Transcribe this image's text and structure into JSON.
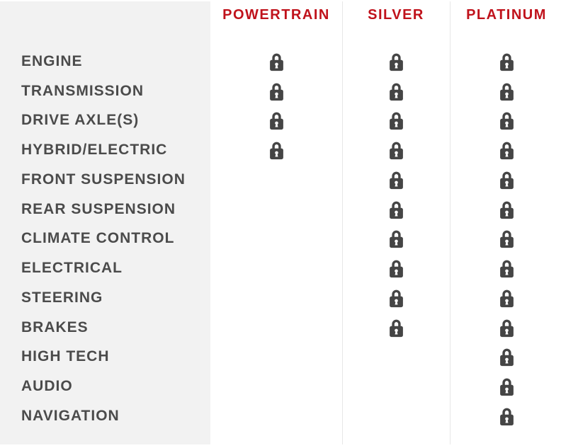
{
  "colors": {
    "header_red": "#c0121b",
    "label_gray": "#4b4b4b",
    "lock_gray": "#454545",
    "panel_bg": "#f2f2f2",
    "divider": "#e7e7e7",
    "page_bg": "#ffffff"
  },
  "table": {
    "columns": [
      {
        "id": "powertrain",
        "label": "POWERTRAIN"
      },
      {
        "id": "silver",
        "label": "SILVER"
      },
      {
        "id": "platinum",
        "label": "PLATINUM"
      }
    ],
    "covered_icon": "lock-icon",
    "rows": [
      {
        "label": "ENGINE",
        "powertrain": true,
        "silver": true,
        "platinum": true
      },
      {
        "label": "TRANSMISSION",
        "powertrain": true,
        "silver": true,
        "platinum": true
      },
      {
        "label": "DRIVE AXLE(S)",
        "powertrain": true,
        "silver": true,
        "platinum": true
      },
      {
        "label": "HYBRID/ELECTRIC",
        "powertrain": true,
        "silver": true,
        "platinum": true
      },
      {
        "label": "FRONT SUSPENSION",
        "powertrain": false,
        "silver": true,
        "platinum": true
      },
      {
        "label": "REAR SUSPENSION",
        "powertrain": false,
        "silver": true,
        "platinum": true
      },
      {
        "label": "CLIMATE CONTROL",
        "powertrain": false,
        "silver": true,
        "platinum": true
      },
      {
        "label": "ELECTRICAL",
        "powertrain": false,
        "silver": true,
        "platinum": true
      },
      {
        "label": "STEERING",
        "powertrain": false,
        "silver": true,
        "platinum": true
      },
      {
        "label": "BRAKES",
        "powertrain": false,
        "silver": true,
        "platinum": true
      },
      {
        "label": "HIGH TECH",
        "powertrain": false,
        "silver": false,
        "platinum": true
      },
      {
        "label": "AUDIO",
        "powertrain": false,
        "silver": false,
        "platinum": true
      },
      {
        "label": "NAVIGATION",
        "powertrain": false,
        "silver": false,
        "platinum": true
      }
    ]
  }
}
